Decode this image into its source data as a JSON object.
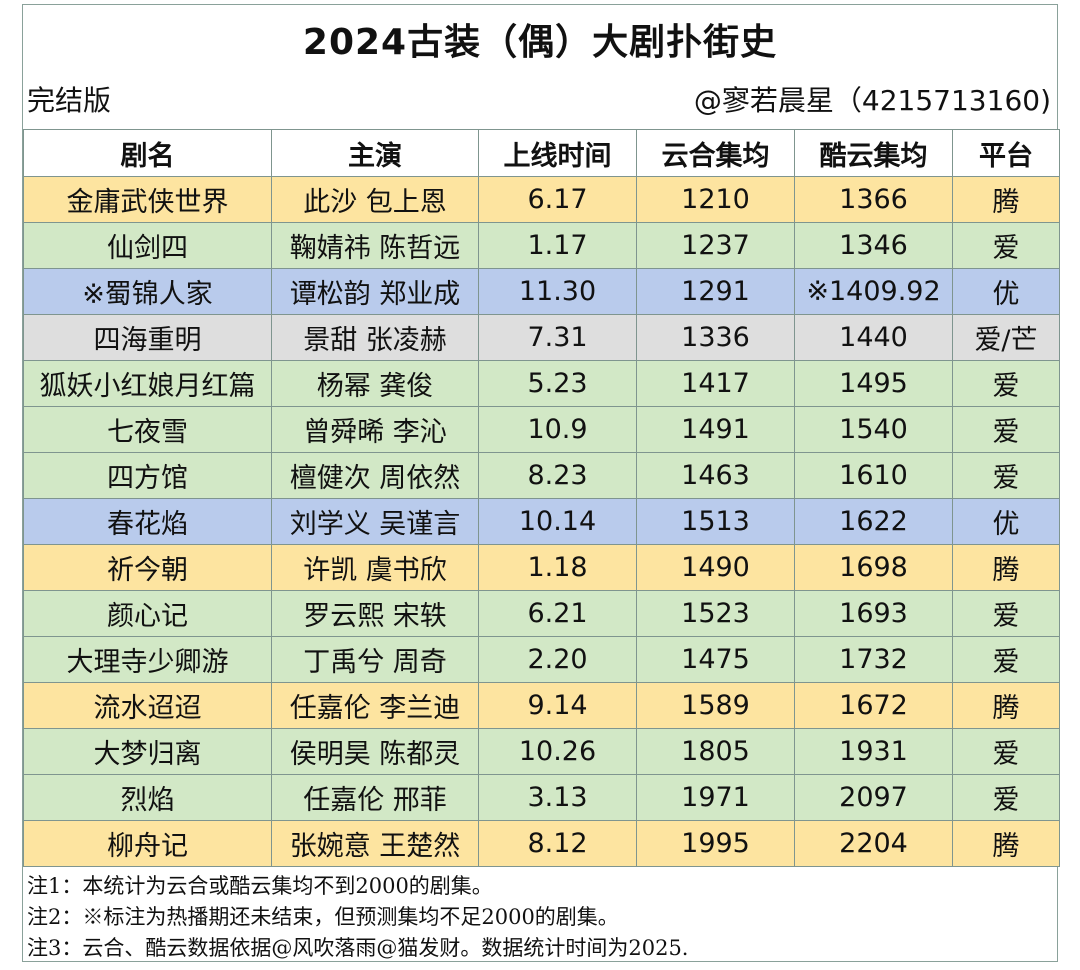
{
  "title": "2024古装（偶）大剧扑街史",
  "version_label": "完结版",
  "author": "@寥若晨星（4215713160)",
  "table": {
    "headers": [
      "剧名",
      "主演",
      "上线时间",
      "云合集均",
      "酷云集均",
      "平台"
    ],
    "rows": [
      {
        "color": "yellow",
        "cells": [
          "金庸武侠世界",
          "此沙 包上恩",
          "6.17",
          "1210",
          "1366",
          "腾"
        ]
      },
      {
        "color": "green",
        "cells": [
          "仙剑四",
          "鞠婧祎 陈哲远",
          "1.17",
          "1237",
          "1346",
          "爱"
        ]
      },
      {
        "color": "blue",
        "cells": [
          "※蜀锦人家",
          "谭松韵 郑业成",
          "11.30",
          "1291",
          "※1409.92",
          "优"
        ]
      },
      {
        "color": "gray",
        "cells": [
          "四海重明",
          "景甜 张凌赫",
          "7.31",
          "1336",
          "1440",
          "爱/芒"
        ]
      },
      {
        "color": "green",
        "cells": [
          "狐妖小红娘月红篇",
          "杨幂 龚俊",
          "5.23",
          "1417",
          "1495",
          "爱"
        ]
      },
      {
        "color": "green",
        "cells": [
          "七夜雪",
          "曾舜晞 李沁",
          "10.9",
          "1491",
          "1540",
          "爱"
        ]
      },
      {
        "color": "green",
        "cells": [
          "四方馆",
          "檀健次 周依然",
          "8.23",
          "1463",
          "1610",
          "爱"
        ]
      },
      {
        "color": "blue",
        "cells": [
          "春花焰",
          "刘学义 吴谨言",
          "10.14",
          "1513",
          "1622",
          "优"
        ]
      },
      {
        "color": "yellow",
        "cells": [
          "祈今朝",
          "许凯 虞书欣",
          "1.18",
          "1490",
          "1698",
          "腾"
        ]
      },
      {
        "color": "green",
        "cells": [
          "颜心记",
          "罗云熙 宋轶",
          "6.21",
          "1523",
          "1693",
          "爱"
        ]
      },
      {
        "color": "green",
        "cells": [
          "大理寺少卿游",
          "丁禹兮 周奇",
          "2.20",
          "1475",
          "1732",
          "爱"
        ]
      },
      {
        "color": "yellow",
        "cells": [
          "流水迢迢",
          "任嘉伦 李兰迪",
          "9.14",
          "1589",
          "1672",
          "腾"
        ]
      },
      {
        "color": "green",
        "cells": [
          "大梦归离",
          "侯明昊 陈都灵",
          "10.26",
          "1805",
          "1931",
          "爱"
        ]
      },
      {
        "color": "green",
        "cells": [
          "烈焰",
          "任嘉伦 邢菲",
          "3.13",
          "1971",
          "2097",
          "爱"
        ]
      },
      {
        "color": "yellow",
        "cells": [
          "柳舟记",
          "张婉意 王楚然",
          "8.12",
          "1995",
          "2204",
          "腾"
        ]
      }
    ]
  },
  "notes": [
    "注1：本统计为云合或酷云集均不到2000的剧集。",
    "注2：※标注为热播期还未结束，但预测集均不足2000的剧集。",
    "注3：云合、酷云数据依据@风吹落雨@猫发财。数据统计时间为2025."
  ],
  "colors": {
    "yellow": "#fde4a0",
    "green": "#d2e8c6",
    "blue": "#b9cbec",
    "gray": "#dedede"
  }
}
